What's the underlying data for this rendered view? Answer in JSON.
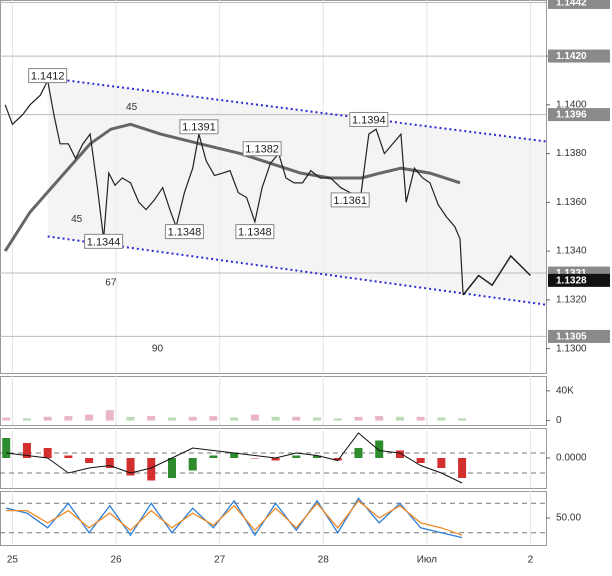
{
  "chart_data": [
    {
      "type": "line",
      "xlim": [
        -0.12,
        5.15
      ],
      "ylim": [
        1.129,
        1.1443
      ],
      "grid": false,
      "yticks": [
        {
          "value": 1.13,
          "label": "1.1300"
        },
        {
          "value": 1.132,
          "label": "1.1320"
        },
        {
          "value": 1.134,
          "label": "1.1340"
        },
        {
          "value": 1.136,
          "label": "1.1360"
        },
        {
          "value": 1.138,
          "label": "1.1380"
        },
        {
          "value": 1.14,
          "label": "1.1400"
        },
        {
          "value": 1.142,
          "label": "1.1420"
        }
      ],
      "x": [
        -0.07,
        0,
        0.1,
        0.17,
        0.27,
        0.34,
        0.4,
        0.46,
        0.54,
        0.61,
        0.68,
        0.75,
        0.82,
        0.88,
        0.93,
        0.99,
        1.06,
        1.14,
        1.22,
        1.29,
        1.37,
        1.45,
        1.52,
        1.58,
        1.66,
        1.74,
        1.8,
        1.87,
        1.95,
        2.03,
        2.1,
        2.18,
        2.26,
        2.34,
        2.41,
        2.49,
        2.57,
        2.64,
        2.72,
        2.8,
        2.88,
        2.97,
        3.07,
        3.17,
        3.26,
        3.36,
        3.44,
        3.51,
        3.59,
        3.67,
        3.75,
        3.8,
        3.88,
        3.96,
        4.03,
        4.11,
        4.19,
        4.27,
        4.32,
        4.35
      ],
      "series": [
        {
          "style": "line",
          "color": "#222222",
          "width": 1.2,
          "values": [
            1.14,
            1.1392,
            1.1396,
            1.14,
            1.1404,
            1.141,
            1.1396,
            1.1384,
            1.1384,
            1.1378,
            1.1384,
            1.1388,
            1.1366,
            1.1345,
            1.1372,
            1.1367,
            1.137,
            1.1368,
            1.136,
            1.1357,
            1.1361,
            1.1366,
            1.1357,
            1.135,
            1.1364,
            1.1374,
            1.1388,
            1.1377,
            1.1371,
            1.1372,
            1.1373,
            1.1364,
            1.1362,
            1.1352,
            1.1366,
            1.1376,
            1.138,
            1.137,
            1.1368,
            1.1368,
            1.1373,
            1.137,
            1.137,
            1.1366,
            1.1364,
            1.1362,
            1.1388,
            1.139,
            1.138,
            1.1384,
            1.1388,
            1.136,
            1.1374,
            1.137,
            1.1368,
            1.1359,
            1.1354,
            1.135,
            1.1345,
            1.1322
          ]
        }
      ],
      "trend_lines": [
        {
          "color": "#666666",
          "width": 3,
          "dash": "",
          "x": [
            -0.07,
            0.17,
            0.46,
            0.75,
            0.95,
            1.14,
            1.43,
            1.81,
            2.2,
            2.49,
            2.78,
            3.07,
            3.37,
            3.55,
            3.75,
            4.03,
            4.32
          ],
          "values": [
            1.134,
            1.1356,
            1.137,
            1.1384,
            1.139,
            1.1392,
            1.1388,
            1.1384,
            1.138,
            1.1376,
            1.1372,
            1.137,
            1.137,
            1.1372,
            1.1374,
            1.1372,
            1.1368
          ]
        },
        {
          "color": "#2b2bd6",
          "width": 2,
          "dash": "2 3",
          "x": [
            0.34,
            5.15
          ],
          "values": [
            1.1411,
            1.1385
          ]
        },
        {
          "color": "#2b2bd6",
          "width": 2,
          "dash": "2 3",
          "x": [
            0.34,
            5.15
          ],
          "values": [
            1.1346,
            1.1318
          ]
        },
        {
          "color": "#222222",
          "width": 1.5,
          "dash": "",
          "x": [
            4.35,
            4.5,
            4.63,
            4.81,
            5
          ],
          "values": [
            1.1322,
            1.133,
            1.1326,
            1.1338,
            1.133
          ]
        }
      ],
      "annotations": [
        {
          "label": "1.1412",
          "value": 1.1412,
          "x": 0.34
        },
        {
          "label": "1.1391",
          "value": 1.1391,
          "x": 1.8
        },
        {
          "label": "1.1382",
          "value": 1.1382,
          "x": 2.41
        },
        {
          "label": "1.1394",
          "value": 1.1394,
          "x": 3.44
        },
        {
          "label": "1.1361",
          "value": 1.1361,
          "x": 3.26
        },
        {
          "label": "1.1348",
          "value": 1.1348,
          "x": 1.66
        },
        {
          "label": "1.1348",
          "value": 1.1348,
          "x": 2.34
        },
        {
          "label": "1.1344",
          "value": 1.1344,
          "x": 0.88
        }
      ],
      "text_labels": [
        {
          "label": "45",
          "x": 1.15,
          "value": 1.1399
        },
        {
          "label": "45",
          "x": 0.62,
          "value": 1.1353
        },
        {
          "label": "67",
          "x": 0.95,
          "value": 1.1327
        },
        {
          "label": "90",
          "x": 1.4,
          "value": 1.13
        }
      ],
      "price_markers": [
        {
          "value": 1.1442,
          "label": "1.1442",
          "color": "#8a8a8a"
        },
        {
          "value": 1.142,
          "label": "1.1420",
          "color": "#8a8a8a"
        },
        {
          "value": 1.1396,
          "label": "1.1396",
          "color": "#8a8a8a"
        },
        {
          "value": 1.1331,
          "label": "1.1331",
          "color": "#8a8a8a"
        },
        {
          "value": 1.1328,
          "label": "1.1328",
          "color": "#111111"
        },
        {
          "value": 1.1305,
          "label": "1.1305",
          "color": "#8a8a8a"
        }
      ]
    },
    {
      "type": "bar",
      "xlim": [
        -0.12,
        5.15
      ],
      "ylim": [
        -6000,
        60000
      ],
      "grid": false,
      "yticks": [
        0,
        {
          "value": 40000,
          "label": "40K"
        }
      ],
      "x": [
        -0.06,
        0.14,
        0.34,
        0.54,
        0.74,
        0.94,
        1.14,
        1.34,
        1.54,
        1.74,
        1.94,
        2.14,
        2.34,
        2.54,
        2.74,
        2.94,
        3.14,
        3.34,
        3.54,
        3.74,
        3.94,
        4.14,
        4.34
      ],
      "series": [
        {
          "style": "bar",
          "color": "#e8b4c8",
          "down_color": "#b9dcb4",
          "values": [
            4000,
            3000,
            5000,
            6000,
            8000,
            14000,
            5000,
            6000,
            4000,
            5000,
            6000,
            4000,
            8000,
            5000,
            5000,
            4000,
            3000,
            5000,
            6000,
            5000,
            5000,
            4000,
            3000
          ]
        }
      ]
    },
    {
      "type": "bar",
      "xlim": [
        -0.12,
        5.15
      ],
      "ylim": [
        -0.0012,
        0.0012
      ],
      "grid": false,
      "yticks": [
        {
          "value": 0,
          "label": "0.0000"
        }
      ],
      "levels": [
        0.0002,
        -0.0006
      ],
      "x": [
        -0.06,
        0.14,
        0.34,
        0.54,
        0.74,
        0.94,
        1.14,
        1.34,
        1.54,
        1.74,
        1.94,
        2.14,
        2.34,
        2.54,
        2.74,
        2.94,
        3.14,
        3.34,
        3.54,
        3.74,
        3.94,
        4.14,
        4.34
      ],
      "series": [
        {
          "style": "bar",
          "color": "#2e8b2e",
          "down_color": "#d32f2f",
          "values": [
            0.0008,
            0.0006,
            0.0004,
            0.0001,
            -0.0002,
            -0.0004,
            -0.0007,
            -0.0009,
            -0.0008,
            -0.0005,
            0.0001,
            0.0002,
            0,
            -0.0001,
            0.0001,
            0.0001,
            -0.0001,
            0.0004,
            0.0007,
            0.0003,
            -0.0002,
            -0.0004,
            -0.0008
          ]
        },
        {
          "style": "line",
          "color": "#111111",
          "width": 1,
          "values": [
            0.0002,
            0.0001,
            0,
            -0.0006,
            -0.0004,
            -0.0003,
            -0.0006,
            -0.0004,
            0,
            0.0004,
            0.0003,
            0.0002,
            0.0001,
            0,
            0.0002,
            0.0001,
            -0.0001,
            0.001,
            0.0003,
            0.0002,
            -0.0003,
            -0.0006,
            -0.001
          ]
        }
      ]
    },
    {
      "type": "line",
      "xlim": [
        -0.12,
        5.15
      ],
      "ylim": [
        -5,
        105
      ],
      "grid": false,
      "yticks": [
        {
          "value": 50,
          "label": "50.00"
        }
      ],
      "levels": [
        80,
        20
      ],
      "xticks": [
        {
          "value": 0,
          "label": "25"
        },
        {
          "value": 1,
          "label": "26"
        },
        {
          "value": 2,
          "label": "27"
        },
        {
          "value": 3,
          "label": "28"
        },
        {
          "value": 4,
          "label": "Июл"
        },
        {
          "value": 5,
          "label": "2"
        }
      ],
      "x": [
        -0.06,
        0.14,
        0.34,
        0.54,
        0.74,
        0.94,
        1.14,
        1.34,
        1.54,
        1.74,
        1.94,
        2.14,
        2.34,
        2.54,
        2.74,
        2.94,
        3.14,
        3.34,
        3.54,
        3.74,
        3.94,
        4.14,
        4.34
      ],
      "series": [
        {
          "style": "line",
          "color": "#2f7fd8",
          "width": 1.3,
          "values": [
            70,
            60,
            30,
            80,
            20,
            75,
            15,
            80,
            20,
            70,
            30,
            85,
            15,
            80,
            25,
            85,
            20,
            90,
            40,
            80,
            30,
            20,
            10
          ]
        },
        {
          "style": "line",
          "color": "#f08a24",
          "width": 1.3,
          "values": [
            65,
            65,
            40,
            65,
            30,
            60,
            25,
            65,
            30,
            60,
            35,
            75,
            25,
            70,
            30,
            80,
            30,
            85,
            50,
            75,
            40,
            30,
            15
          ]
        }
      ]
    }
  ]
}
